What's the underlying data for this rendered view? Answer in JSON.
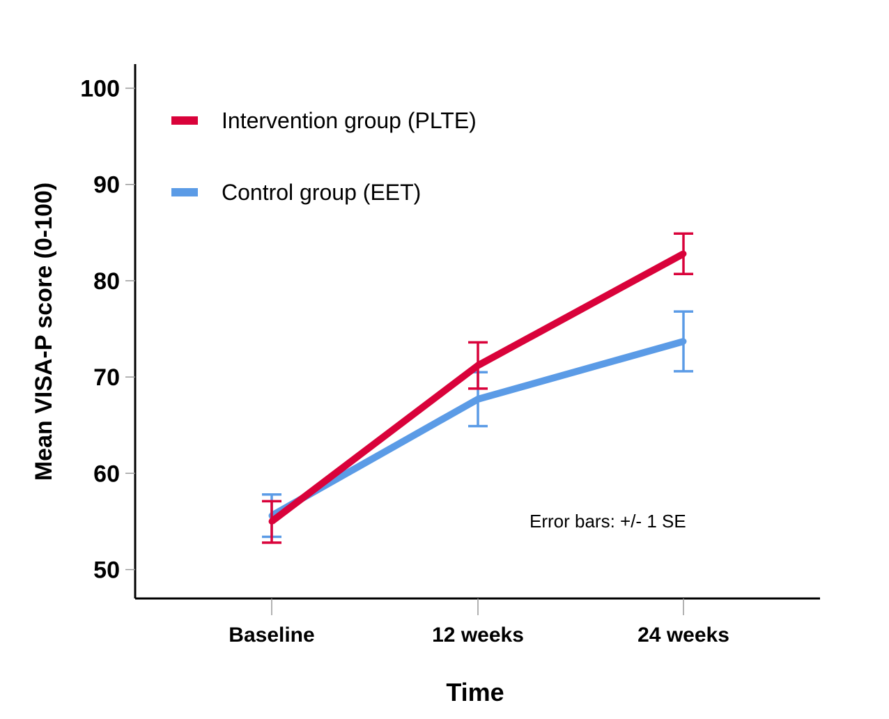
{
  "chart_data": {
    "type": "line",
    "title": "",
    "xlabel": "Time",
    "ylabel": "Mean VISA-P score (0-100)",
    "categories": [
      "Baseline",
      "12 weeks",
      "24 weeks"
    ],
    "ylim": [
      47,
      102.5
    ],
    "yticks": [
      50,
      60,
      70,
      80,
      90,
      100
    ],
    "ytick_labels": [
      "50",
      "60",
      "70",
      "80",
      "90",
      "100"
    ],
    "grid": false,
    "legend_position": "top-left",
    "series": [
      {
        "name": "Intervention group (PLTE)",
        "color": "#d9023a",
        "values": [
          55.0,
          71.2,
          82.8
        ],
        "se_low": [
          52.8,
          68.8,
          80.7
        ],
        "se_high": [
          57.1,
          73.6,
          84.9
        ]
      },
      {
        "name": "Control group (EET)",
        "color": "#5b9be6",
        "values": [
          55.6,
          67.7,
          73.7
        ],
        "se_low": [
          53.4,
          64.9,
          70.6
        ],
        "se_high": [
          57.8,
          70.5,
          76.8
        ]
      }
    ],
    "annotation": "Error bars: +/- 1 SE"
  }
}
